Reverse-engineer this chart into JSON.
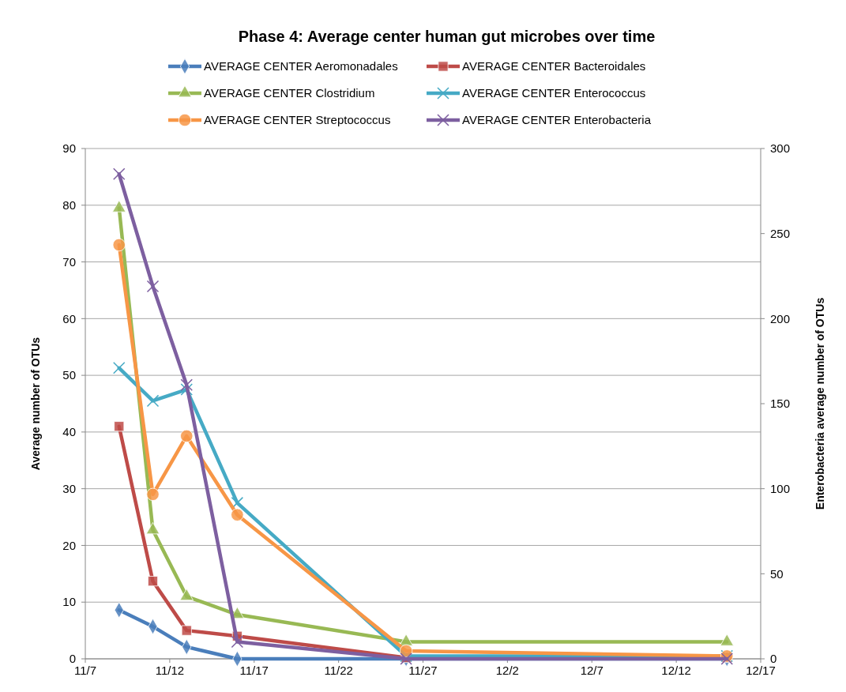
{
  "chart_data": {
    "type": "line",
    "title": "Phase 4: Average center human gut microbes over time",
    "ylabel": "Average number of OTUs",
    "y2label": "Enterobacteria average number of OTUs",
    "x": [
      "--11-09",
      "--11-11",
      "--11-13",
      "--11-16",
      "--11-26",
      "--12-15"
    ],
    "xlim": [
      "--11-07",
      "--12-17"
    ],
    "xticks": [
      {
        "value": "--11-07",
        "label": "11/7"
      },
      {
        "value": "--11-12",
        "label": "11/12"
      },
      {
        "value": "--11-17",
        "label": "11/17"
      },
      {
        "value": "--11-22",
        "label": "11/22"
      },
      {
        "value": "--11-27",
        "label": "11/27"
      },
      {
        "value": "--12-02",
        "label": "12/2"
      },
      {
        "value": "--12-07",
        "label": "12/7"
      },
      {
        "value": "--12-12",
        "label": "12/12"
      },
      {
        "value": "--12-17",
        "label": "12/17"
      }
    ],
    "ylim": [
      0,
      90
    ],
    "yticks": [
      0,
      10,
      20,
      30,
      40,
      50,
      60,
      70,
      80,
      90
    ],
    "y2lim": [
      0,
      300
    ],
    "y2ticks": [
      0,
      50,
      100,
      150,
      200,
      250,
      300
    ],
    "grid": "y",
    "legend": "top",
    "series": [
      {
        "name": "AVERAGE CENTER Aeromonadales",
        "color": "#4a7ebb",
        "marker": "diamond",
        "values": [
          8.6,
          5.7,
          2.1,
          0,
          0,
          0
        ]
      },
      {
        "name": "AVERAGE CENTER Bacteroidales",
        "color": "#be4b48",
        "marker": "square",
        "values": [
          41,
          13.7,
          5,
          4,
          0.2,
          0.2
        ]
      },
      {
        "name": "AVERAGE CENTER Clostridium",
        "color": "#98b954",
        "marker": "triangle",
        "values": [
          79.5,
          22.7,
          11,
          7.8,
          3,
          3
        ]
      },
      {
        "name": "AVERAGE CENTER Enterococcus",
        "color": "#46aac5",
        "marker": "cross",
        "values": [
          51.3,
          45.5,
          47.5,
          27.5,
          0.5,
          0.5
        ]
      },
      {
        "name": "AVERAGE CENTER Streptococcus",
        "color": "#f79646",
        "marker": "circle",
        "values": [
          73,
          29,
          39.3,
          25.4,
          1.4,
          0.5
        ]
      },
      {
        "name": "AVERAGE CENTER Enterobacteria",
        "color": "#7d5fa0",
        "marker": "cross",
        "axis": "y2",
        "values": [
          285,
          219,
          161,
          10,
          0,
          0
        ]
      }
    ]
  }
}
